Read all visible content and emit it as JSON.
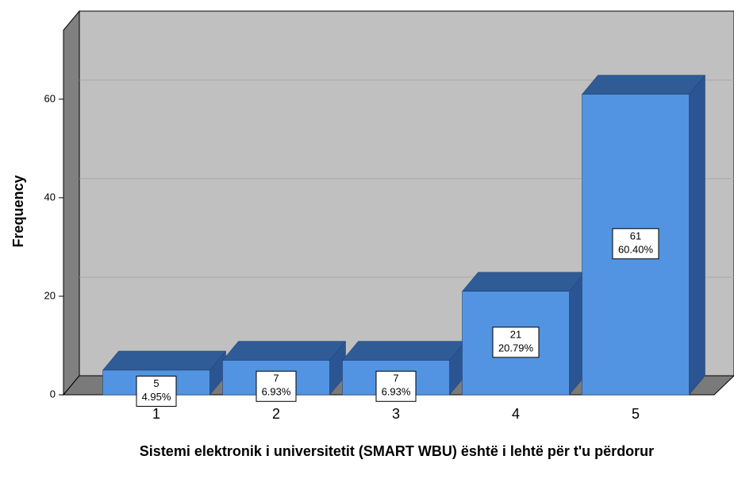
{
  "chart_data": {
    "type": "bar3d",
    "x_label": "Sistemi elektronik i universitetit (SMART WBU) është i lehtë për t'u përdorur",
    "y_label": "Frequency",
    "categories": [
      "1",
      "2",
      "3",
      "4",
      "5"
    ],
    "values": [
      5,
      7,
      7,
      21,
      61
    ],
    "percents": [
      4.95,
      6.93,
      6.93,
      20.79,
      60.4
    ],
    "percent_labels": [
      "4.95%",
      "6.93%",
      "6.93%",
      "20.79%",
      "60.40%"
    ],
    "color": "#5294e2",
    "ylim": [
      0,
      74
    ],
    "yticks": [
      0,
      20,
      40,
      60
    ],
    "grid": true
  }
}
